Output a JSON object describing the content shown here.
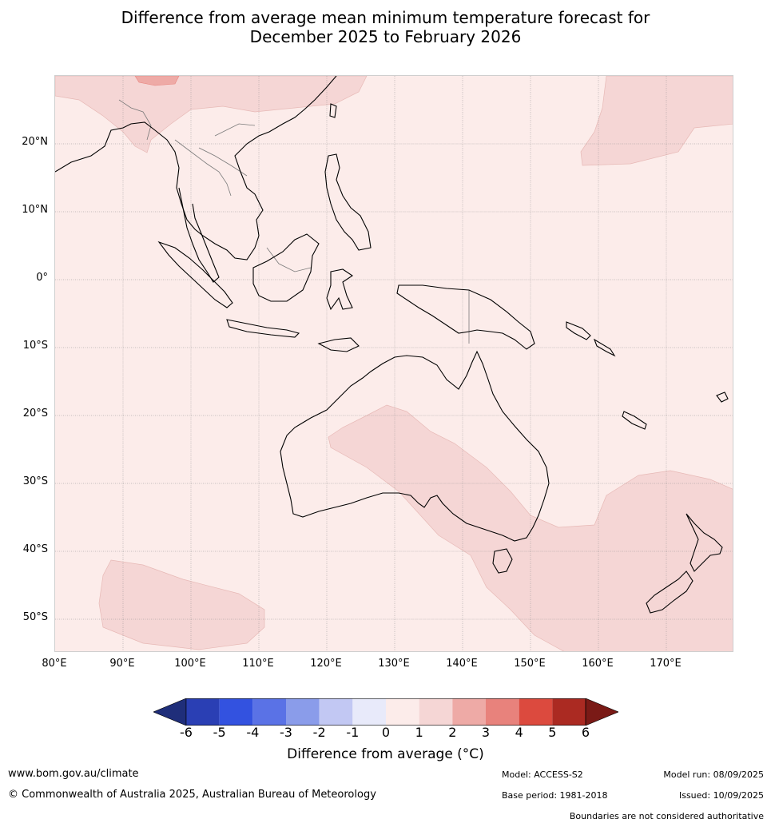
{
  "title_line1": "Difference from average mean minimum temperature forecast for",
  "title_line2": "December 2025 to February 2026",
  "lat_ticks": [
    "20°N",
    "10°N",
    "0°",
    "10°S",
    "20°S",
    "30°S",
    "40°S",
    "50°S"
  ],
  "lon_ticks": [
    "80°E",
    "90°E",
    "100°E",
    "110°E",
    "120°E",
    "130°E",
    "140°E",
    "150°E",
    "160°E",
    "170°E"
  ],
  "colorbar": {
    "labels": [
      "-6",
      "-5",
      "-4",
      "-3",
      "-2",
      "-1",
      "0",
      "1",
      "2",
      "3",
      "4",
      "5",
      "6"
    ],
    "colors": [
      "#1f2e7a",
      "#2a3fb4",
      "#3352e0",
      "#5a72e6",
      "#8a9cea",
      "#c2c8f3",
      "#e8eafa",
      "#fcecea",
      "#f5d6d5",
      "#eeaaa6",
      "#e8827c",
      "#dc4a3e",
      "#ab2a22",
      "#7a1a16"
    ],
    "title": "Difference from average ($^\\circ$C)",
    "title_display": "Difference from average (°C)"
  },
  "footer": {
    "url": "www.bom.gov.au/climate",
    "copyright": "© Commonwealth of Australia 2025, Australian Bureau of Meteorology",
    "model": "Model: ACCESS-S2",
    "model_run": "Model run: 08/09/2025",
    "base_period": "Base period: 1981-2018",
    "issued": "Issued: 10/09/2025",
    "boundaries": "Boundaries are not considered authoritative"
  }
}
